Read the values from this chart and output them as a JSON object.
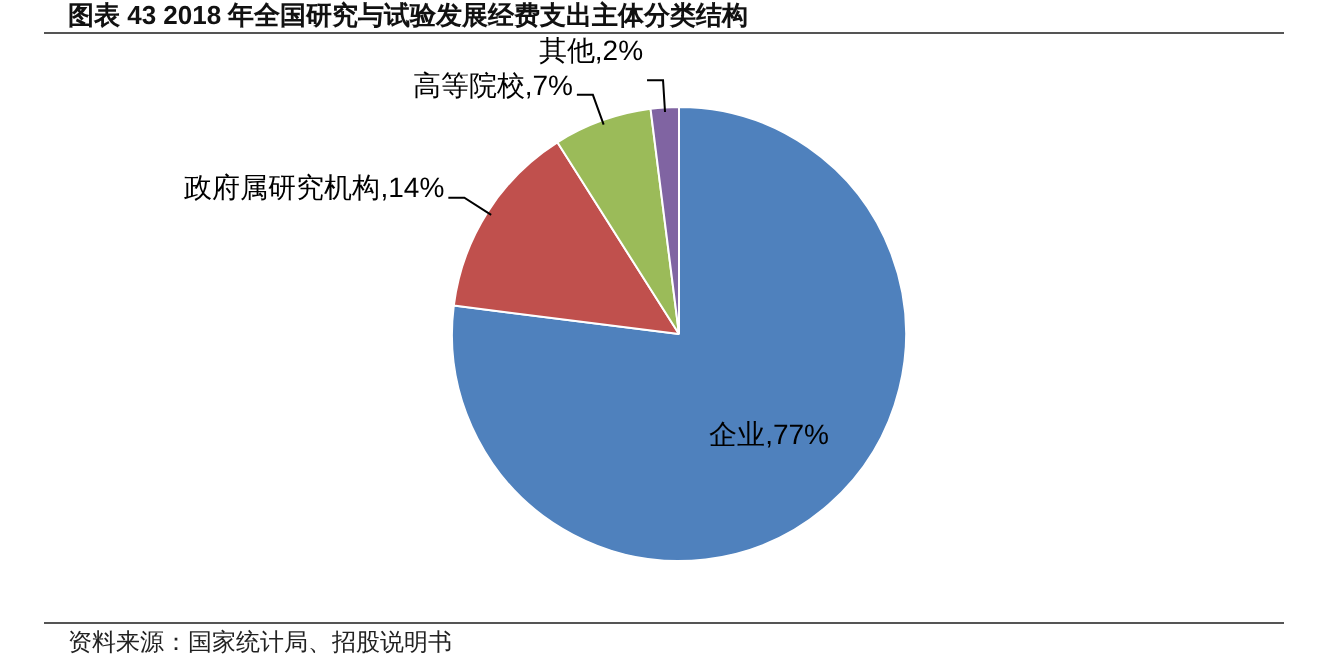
{
  "chart_data": {
    "type": "pie",
    "title": "图表 43 2018 年全国研究与试验发展经费支出主体分类结构",
    "categories": [
      "企业",
      "政府属研究机构",
      "高等院校",
      "其他"
    ],
    "values": [
      77,
      14,
      7,
      2
    ],
    "colors": [
      "#4f81bd",
      "#c0504d",
      "#9bbb59",
      "#8064a2"
    ],
    "value_labels": [
      "77%",
      "14%",
      "7%",
      "2%"
    ],
    "legend": false,
    "annotations": [
      "资料来源：国家统计局、招股说明书"
    ]
  }
}
